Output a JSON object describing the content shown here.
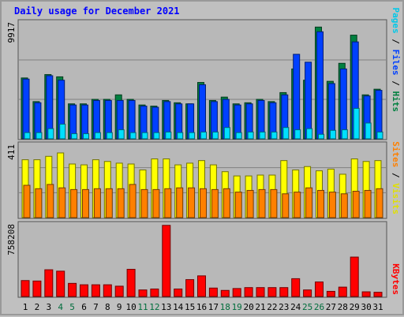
{
  "chart_data": [
    {
      "type": "bar",
      "title": "Daily usage for December 2021",
      "categories": [
        "1",
        "2",
        "3",
        "4",
        "5",
        "6",
        "7",
        "8",
        "9",
        "10",
        "11",
        "12",
        "13",
        "14",
        "15",
        "16",
        "17",
        "18",
        "19",
        "20",
        "21",
        "22",
        "23",
        "24",
        "25",
        "26",
        "27",
        "28",
        "29",
        "30",
        "31"
      ],
      "weekend_days": [
        "4",
        "5",
        "11",
        "12",
        "18",
        "19",
        "25",
        "26"
      ],
      "ylabel_max": "9917",
      "right_axis_labels": [
        "Pages",
        "Files",
        "Hits"
      ],
      "series": [
        {
          "name": "Hits",
          "color": "#008040",
          "values": [
            5400,
            3300,
            5700,
            5500,
            3100,
            3100,
            3500,
            3500,
            3900,
            3500,
            3000,
            2900,
            3400,
            3200,
            3100,
            5000,
            3400,
            3700,
            3100,
            3200,
            3500,
            3300,
            4100,
            6200,
            5200,
            9917,
            5100,
            6700,
            9200,
            3900,
            4400
          ]
        },
        {
          "name": "Files",
          "color": "#0040ff",
          "values": [
            5300,
            3200,
            5600,
            5200,
            3000,
            3000,
            3400,
            3400,
            3400,
            3400,
            2900,
            2800,
            3300,
            3100,
            3100,
            4800,
            3300,
            3500,
            3000,
            3100,
            3400,
            3200,
            3900,
            7500,
            6800,
            9500,
            4900,
            6200,
            8600,
            3800,
            4300
          ]
        },
        {
          "name": "Pages",
          "color": "#00e0ff",
          "values": [
            550,
            550,
            900,
            1300,
            450,
            450,
            550,
            550,
            800,
            550,
            550,
            550,
            600,
            550,
            550,
            600,
            600,
            1000,
            550,
            600,
            600,
            600,
            1000,
            800,
            900,
            400,
            750,
            800,
            2700,
            1400,
            600
          ]
        }
      ]
    },
    {
      "type": "bar",
      "categories": [
        "1",
        "2",
        "3",
        "4",
        "5",
        "6",
        "7",
        "8",
        "9",
        "10",
        "11",
        "12",
        "13",
        "14",
        "15",
        "16",
        "17",
        "18",
        "19",
        "20",
        "21",
        "22",
        "23",
        "24",
        "25",
        "26",
        "27",
        "28",
        "29",
        "30",
        "31"
      ],
      "ylabel_max": "411",
      "right_axis_labels": [
        "Sites",
        "Visits"
      ],
      "series": [
        {
          "name": "Visits",
          "color": "#ffff00",
          "values": [
            340,
            340,
            360,
            380,
            315,
            310,
            340,
            330,
            320,
            315,
            280,
            345,
            345,
            310,
            320,
            335,
            310,
            270,
            245,
            245,
            250,
            250,
            335,
            280,
            300,
            275,
            285,
            255,
            345,
            330,
            335
          ]
        },
        {
          "name": "Sites",
          "color": "#ff8000",
          "values": [
            190,
            170,
            195,
            175,
            165,
            165,
            170,
            170,
            170,
            195,
            165,
            165,
            170,
            175,
            175,
            170,
            165,
            170,
            150,
            160,
            165,
            165,
            140,
            150,
            175,
            160,
            150,
            140,
            155,
            160,
            170
          ]
        }
      ]
    },
    {
      "type": "bar",
      "categories": [
        "1",
        "2",
        "3",
        "4",
        "5",
        "6",
        "7",
        "8",
        "9",
        "10",
        "11",
        "12",
        "13",
        "14",
        "15",
        "16",
        "17",
        "18",
        "19",
        "20",
        "21",
        "22",
        "23",
        "24",
        "25",
        "26",
        "27",
        "28",
        "29",
        "30",
        "31"
      ],
      "ylabel_max": "758208",
      "right_axis_labels": [
        "KBytes"
      ],
      "series": [
        {
          "name": "KBytes",
          "color": "#ff0000",
          "values": [
            170000,
            165000,
            285000,
            270000,
            140000,
            125000,
            125000,
            125000,
            110000,
            290000,
            70000,
            80000,
            758208,
            80000,
            180000,
            220000,
            90000,
            65000,
            85000,
            95000,
            95000,
            95000,
            95000,
            190000,
            70000,
            155000,
            55000,
            100000,
            420000,
            50000,
            45000
          ]
        }
      ]
    }
  ]
}
